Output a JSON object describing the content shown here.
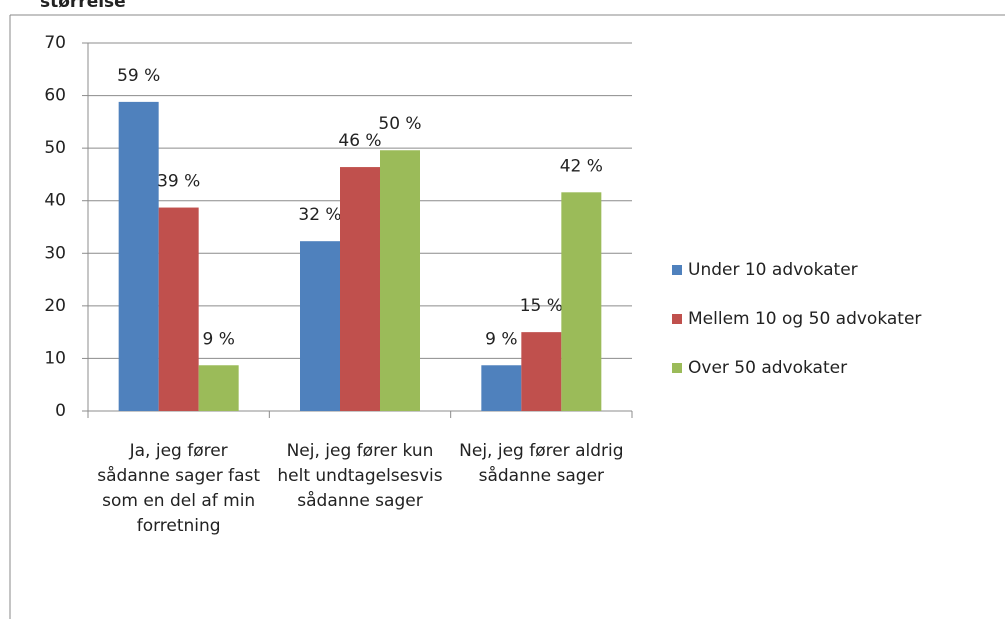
{
  "chart_data": {
    "type": "bar",
    "title": "størrelse",
    "categories": [
      "Ja, jeg fører sådanne sager fast som en del af min forretning",
      "Nej, jeg fører kun helt undtagelsesvis sådanne sager",
      "Nej, jeg fører aldrig sådanne sager"
    ],
    "series": [
      {
        "name": "Under 10 advokater",
        "color": "#4f81bd",
        "values": [
          58.8,
          32.3,
          8.7
        ],
        "value_labels": [
          "59 %",
          "32 %",
          "9 %"
        ]
      },
      {
        "name": "Mellem 10 og 50 advokater",
        "color": "#c0504d",
        "values": [
          38.7,
          46.4,
          15
        ],
        "value_labels": [
          "39 %",
          "46 %",
          "15 %"
        ]
      },
      {
        "name": "Over 50 advokater",
        "color": "#9bbb59",
        "values": [
          8.7,
          49.6,
          41.6
        ],
        "value_labels": [
          "9 %",
          "50 %",
          "42 %"
        ]
      }
    ],
    "ylim": [
      0,
      70
    ],
    "yticks": [
      0,
      10,
      20,
      30,
      40,
      50,
      60,
      70
    ],
    "grid": true,
    "legend": "right"
  }
}
